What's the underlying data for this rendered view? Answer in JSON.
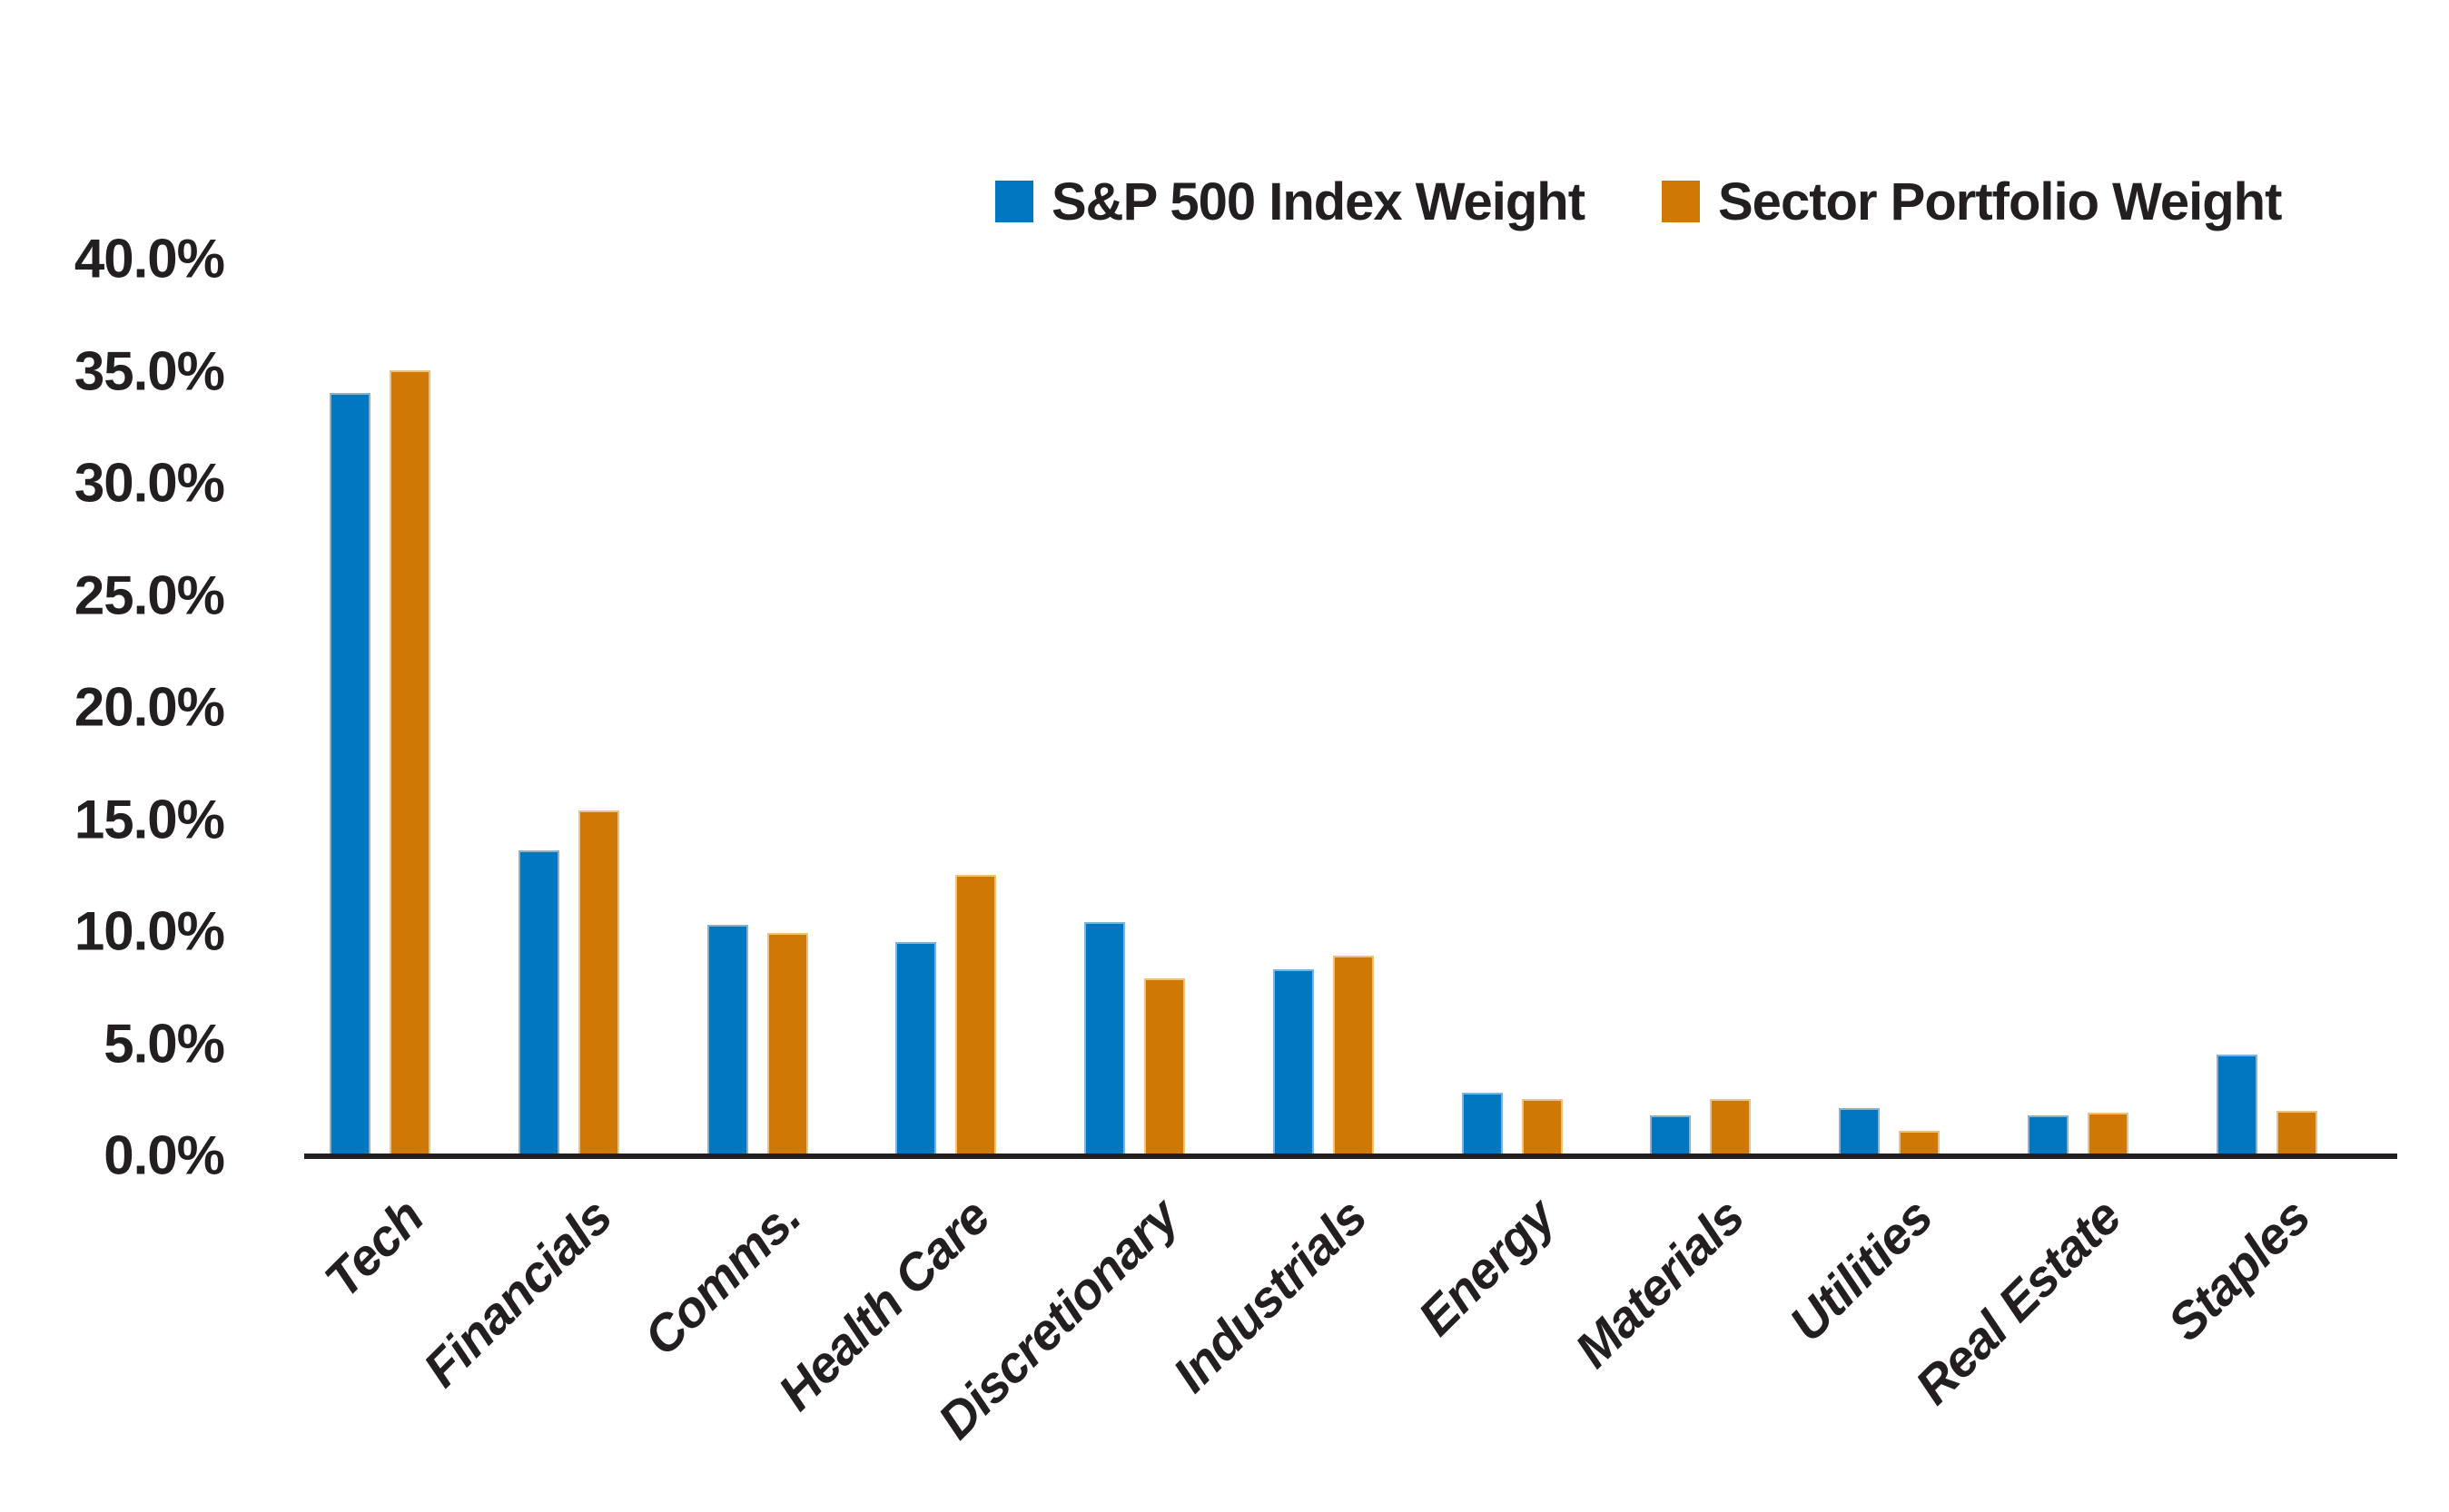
{
  "chart_data": {
    "type": "bar",
    "categories": [
      "Tech",
      "Financials",
      "Comms.",
      "Health Care",
      "Discretionary",
      "Industrials",
      "Energy",
      "Materials",
      "Utilities",
      "Real Estate",
      "Staples"
    ],
    "series": [
      {
        "name": "S&P 500 Index Weight",
        "color": "#0077c0",
        "edge_color": "#7fb4da",
        "values": [
          34.0,
          13.6,
          10.3,
          9.5,
          10.4,
          8.3,
          2.8,
          1.8,
          2.1,
          1.8,
          4.5
        ]
      },
      {
        "name": "Sector Portfolio Weight",
        "color": "#d07806",
        "edge_color": "#edc27c",
        "values": [
          35.0,
          15.4,
          9.9,
          12.5,
          7.9,
          8.9,
          2.5,
          2.5,
          1.1,
          1.9,
          2.0
        ]
      }
    ],
    "title": "",
    "xlabel": "",
    "ylabel": "",
    "ylim": [
      0,
      40
    ],
    "y_ticks": [
      "0.0%",
      "5.0%",
      "10.0%",
      "15.0%",
      "20.0%",
      "25.0%",
      "30.0%",
      "35.0%",
      "40.0%"
    ],
    "y_tick_values": [
      0,
      5,
      10,
      15,
      20,
      25,
      30,
      35,
      40
    ],
    "grid": false,
    "legend_position": "top-center",
    "axis_color": "#231f20",
    "text_color": "#231f20"
  }
}
